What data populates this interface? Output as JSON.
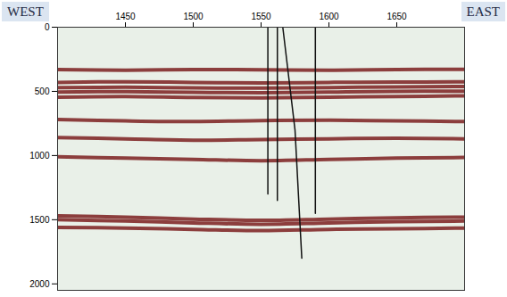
{
  "chart_data": {
    "type": "seismic",
    "annotations": [
      "WEST",
      "EAST"
    ],
    "xlim": [
      1400,
      1700
    ],
    "xticks": [
      1450,
      1500,
      1550,
      1600,
      1650
    ],
    "ylim": [
      0,
      2050
    ],
    "yticks": [
      0,
      500,
      1000,
      1500,
      2000
    ],
    "grid": false,
    "x": [
      1400,
      1450,
      1500,
      1550,
      1600,
      1650,
      1700
    ],
    "series": [
      {
        "type": "horizon",
        "color": "#7b1e1e",
        "values": [
          330,
          335,
          330,
          332,
          335,
          330,
          328
        ]
      },
      {
        "type": "horizon",
        "color": "#7b1e1e",
        "values": [
          430,
          425,
          430,
          435,
          430,
          428,
          425
        ]
      },
      {
        "type": "horizon",
        "color": "#7b1e1e",
        "values": [
          470,
          468,
          472,
          475,
          470,
          466,
          462
        ]
      },
      {
        "type": "horizon",
        "color": "#7b1e1e",
        "values": [
          505,
          502,
          508,
          510,
          506,
          500,
          498
        ]
      },
      {
        "type": "horizon",
        "color": "#7b1e1e",
        "values": [
          545,
          540,
          548,
          550,
          545,
          540,
          535
        ]
      },
      {
        "type": "horizon",
        "color": "#7b1e1e",
        "values": [
          720,
          730,
          735,
          728,
          725,
          730,
          735
        ]
      },
      {
        "type": "horizon",
        "color": "#7b1e1e",
        "values": [
          860,
          870,
          880,
          875,
          870,
          865,
          870
        ]
      },
      {
        "type": "horizon",
        "color": "#7b1e1e",
        "values": [
          1010,
          1020,
          1030,
          1040,
          1030,
          1020,
          1015
        ]
      },
      {
        "type": "horizon",
        "color": "#7b1e1e",
        "values": [
          1470,
          1480,
          1495,
          1505,
          1495,
          1485,
          1480
        ]
      },
      {
        "type": "horizon",
        "color": "#7b1e1e",
        "values": [
          1500,
          1510,
          1525,
          1535,
          1525,
          1515,
          1510
        ]
      },
      {
        "type": "horizon",
        "color": "#7b1e1e",
        "values": [
          1560,
          1565,
          1575,
          1585,
          1575,
          1570,
          1565
        ]
      },
      {
        "type": "well",
        "color": "#111111",
        "x": [
          1555,
          1555
        ],
        "values": [
          0,
          1300
        ]
      },
      {
        "type": "well",
        "color": "#111111",
        "x": [
          1562,
          1562
        ],
        "values": [
          0,
          1350
        ]
      },
      {
        "type": "well",
        "color": "#111111",
        "x": [
          1566,
          1575,
          1580
        ],
        "values": [
          0,
          800,
          1800
        ]
      },
      {
        "type": "well",
        "color": "#111111",
        "x": [
          1590,
          1590
        ],
        "values": [
          0,
          1450
        ]
      }
    ]
  }
}
